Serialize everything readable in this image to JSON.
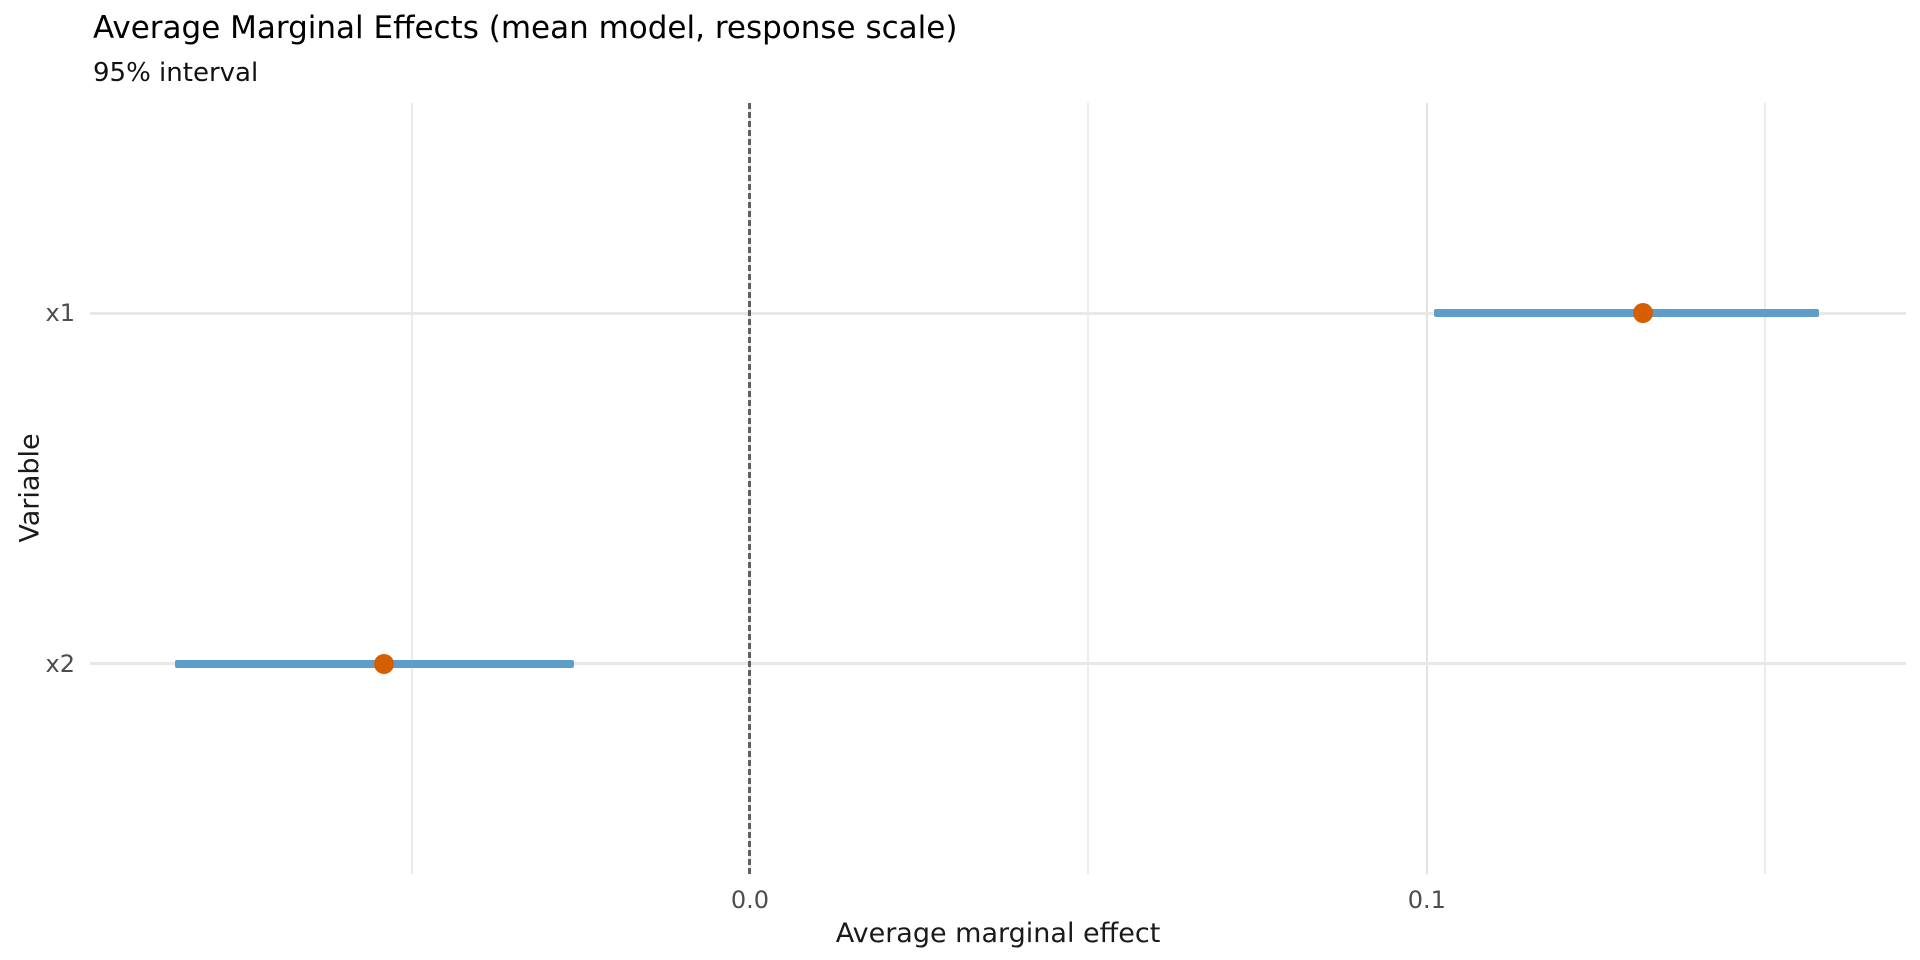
{
  "chart_data": {
    "type": "scatter",
    "subtype": "point-interval",
    "title": "Average Marginal Effects (mean model, response scale)",
    "subtitle": "95% interval",
    "xlabel": "Average marginal effect",
    "ylabel": "Variable",
    "xlim": [
      -0.0975,
      0.1708
    ],
    "x_ticks": [
      {
        "value": 0.0,
        "label": "0.0"
      },
      {
        "value": 0.1,
        "label": "0.1"
      }
    ],
    "x_minor_gridlines": [
      -0.05,
      0.05,
      0.15
    ],
    "x_major_gridlines": [
      0.0,
      0.1
    ],
    "reference_line": {
      "value": 0.0,
      "style": "dashed"
    },
    "categories": [
      "x1",
      "x2"
    ],
    "series": [
      {
        "variable": "x1",
        "estimate": 0.132,
        "ci_low": 0.101,
        "ci_high": 0.158
      },
      {
        "variable": "x2",
        "estimate": -0.054,
        "ci_low": -0.085,
        "ci_high": -0.026
      }
    ],
    "grid": "on",
    "legend_position": "none",
    "colors": {
      "interval_line": "#5E9DC8",
      "point_estimate": "#D55E00",
      "reference_line": "#606060",
      "major_gridline": "#E3E3E3",
      "minor_gridline": "#EBEBEB",
      "row_gridline": "#E8E8E8",
      "tick_label": "#4d4d4d",
      "background": "#ffffff"
    }
  }
}
